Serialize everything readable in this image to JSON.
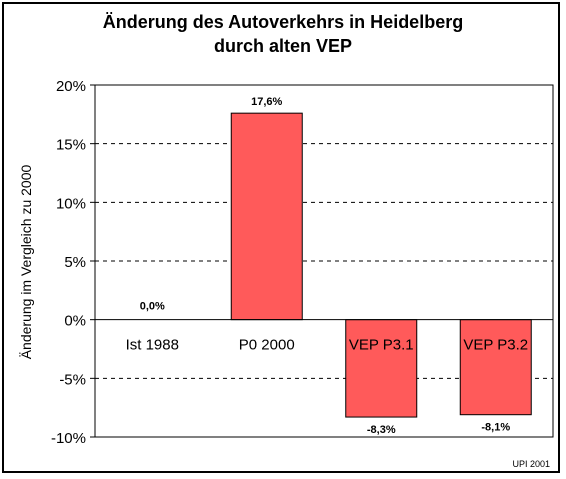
{
  "chart_data": {
    "type": "bar",
    "title": "Änderung des Autoverkehrs in Heidelberg",
    "subtitle": "durch alten VEP",
    "ylabel": "Änderung im Vergleich zu 2000",
    "xlabel": "",
    "categories": [
      "Ist 1988",
      "P0 2000",
      "VEP P3.1",
      "VEP P3.2"
    ],
    "values": [
      0.0,
      17.6,
      -8.3,
      -8.1
    ],
    "value_labels": [
      "0,0%",
      "17,6%",
      "-8,3%",
      "-8,1%"
    ],
    "ylim": [
      -10,
      20
    ],
    "yticks": [
      20,
      15,
      10,
      5,
      0,
      -5,
      -10
    ],
    "ytick_labels": [
      "20%",
      "15%",
      "10%",
      "5%",
      "0%",
      "-5%",
      "-10%"
    ],
    "grid": true,
    "bar_color": "#ff5a5a",
    "footer": "UPI 2001"
  }
}
